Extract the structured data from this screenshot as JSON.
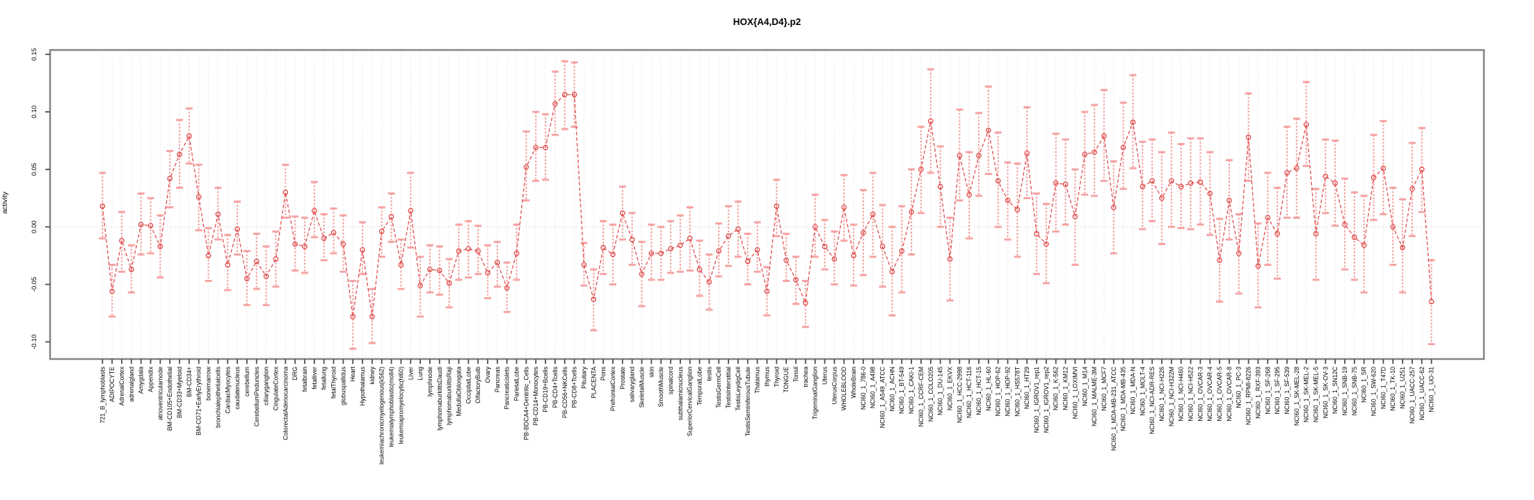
{
  "page": {
    "background": "#ffffff"
  },
  "chart_data": {
    "type": "line",
    "title": "HOX{A4,D4}.p2",
    "ylabel": "activity",
    "xlabel": "",
    "legend": "none",
    "marker": "open-circle",
    "error_bars": true,
    "ylim": [
      -0.115,
      0.155
    ],
    "yticks": [
      -0.1,
      -0.05,
      0.0,
      0.05,
      0.1,
      0.15
    ],
    "grid": {
      "vertical_per_category": true,
      "zero_line_dotted": true,
      "horizontal": false
    },
    "colors": {
      "line": "#e25757",
      "marker": "#df4848",
      "error_bar": "#f49a9a",
      "grid": "#dadada",
      "zero_line": "#c8c8c8",
      "border": "#828282",
      "tick": "#4d4d4d",
      "text": "#000000"
    },
    "categories": [
      "721_B_lymphoblasts",
      "ADIPOCYTE",
      "AdrenalCortex",
      "adrenalgland",
      "Amygdala",
      "Appendix",
      "atrioventricularnode",
      "BM-CD105+Endothelial",
      "BM-CD33+Myeloid",
      "BM-CD34+",
      "BM-CD71+EarlyErythroid",
      "bonemarrow",
      "bronchialepithelialcells",
      "CardiacMyocytes",
      "caudatenucleus",
      "cerebellum",
      "CerebellumPeduncles",
      "ciliaryganglion",
      "CingulateCortex",
      "ColorectalAdenocarcinoma",
      "DRG",
      "fetalbrain",
      "fetalliver",
      "fetallung",
      "fetalThyroid",
      "globuspallidus",
      "Heart",
      "Hypothalamus",
      "kidney",
      "leukemiachronicmyelogenous(k562)",
      "leukemialymphoblastic(molt4)",
      "leukemiapromyelocytic(hl60)",
      "Liver",
      "Lung",
      "lymphnode",
      "lymphomaburkittsDaudi",
      "lymphomaburkittsRaji",
      "MedullaOblongata",
      "OccipitalLobe",
      "OlfactoryBulb",
      "Ovary",
      "Pancreas",
      "Pancreaticislets",
      "ParietalLobe",
      "PB-BDCA4+Dentritic_Cells",
      "PB-CD14+Monocytes",
      "PB-CD19+Bcells",
      "PB-CD4+Tcells",
      "PB-CD56+NKCells",
      "PB-CD8+Tcells",
      "Pituitary",
      "PLACENTA",
      "Pons",
      "PrefrontalCortex",
      "Prostate",
      "salivarygland",
      "SkeletalMuscle",
      "skin",
      "SmoothMuscle",
      "spinalcord",
      "subthalamicnucleus",
      "SuperiorCervicalGanglion",
      "TemporalLobe",
      "testis",
      "TestisGermCell",
      "TestisInterstitial",
      "TestisLeydigCell",
      "TestisSeminiferousTubule",
      "Thalamus",
      "thymus",
      "Thyroid",
      "TONGUE",
      "Tonsil",
      "trachea",
      "TrigeminalGanglion",
      "Uterus",
      "UterusCorpus",
      "WHOLEBLOOD",
      "WholeBrain",
      "NCI60_1_786-0",
      "NCI60_1_A498",
      "NCI60_1_A549_ATCC",
      "NCI60_1_ACHN",
      "NCI60_1_BT-549",
      "NCI60_1_CAKI-1",
      "NCI60_1_CCRF-CEM",
      "NCI60_1_COLO205",
      "NCI60_1_DU-145",
      "NCI60_1_EKVX",
      "NCI60_1_HCC-2998",
      "NCI60_1_HCT-116",
      "NCI60_1_HCT-15",
      "NCI60_1_HL-60",
      "NCI60_1_HOP-62",
      "NCI60_1_HOP-92",
      "NCI60_1_HS578T",
      "NCI60_1_HT29",
      "NCI60_1_IGROV1_rep1",
      "NCI60_1_IGROV1_rep2",
      "NCI60_1_K-562",
      "NCI60_1_KM12",
      "NCI60_1_LOXIMVI",
      "NCI60_1_M14",
      "NCI60_1_MALME-3M",
      "NCI60_1_MCF7",
      "NCI60_1_MDA-MB-231_ATCC",
      "NCI60_1_MDA-MB-435",
      "NCI60_1_MDA-N",
      "NCI60_1_MOLT-4",
      "NCI60_1_NCI-ADR-RES",
      "NCI60_1_NCI-H226",
      "NCI60_1_NCI-H322M",
      "NCI60_1_NCI-H460",
      "NCI60_1_NCI-H522",
      "NCI60_1_OVCAR-3",
      "NCI60_1_OVCAR-4",
      "NCI60_1_OVCAR-5",
      "NCI60_1_OVCAR-8",
      "NCI60_1_PC-3",
      "NCI60_1_RPMI-8226",
      "NCI60_1_RXF-393",
      "NCI60_1_SF-268",
      "NCI60_1_SF-295",
      "NCI60_1_SF-539",
      "NCI60_1_SK-MEL-28",
      "NCI60_1_SK-MEL-2",
      "NCI60_1_SK-MEL-5",
      "NCI60_1_SK-OV-3",
      "NCI60_1_SN12C",
      "NCI60_1_SNB-19",
      "NCI60_1_SNB-75",
      "NCI60_1_SR",
      "NCI60_1_SW-620",
      "NCI60_1_T47D",
      "NCI60_1_TK-10",
      "NCI60_1_U251",
      "NCI60_1_UACC-257",
      "NCI60_1_UACC-62",
      "NCI60_1_UO-31"
    ],
    "series": [
      {
        "name": "activity",
        "values": [
          0.018,
          -0.056,
          -0.012,
          -0.037,
          0.002,
          0.001,
          -0.017,
          0.042,
          0.063,
          0.079,
          0.026,
          -0.025,
          0.011,
          -0.033,
          -0.002,
          -0.045,
          -0.03,
          -0.043,
          -0.028,
          0.03,
          -0.015,
          -0.017,
          0.014,
          -0.01,
          -0.005,
          -0.015,
          -0.078,
          -0.02,
          -0.078,
          -0.004,
          0.009,
          -0.033,
          0.014,
          -0.051,
          -0.037,
          -0.038,
          -0.049,
          -0.021,
          -0.019,
          -0.021,
          -0.04,
          -0.031,
          -0.053,
          -0.023,
          0.052,
          0.069,
          0.069,
          0.107,
          0.115,
          0.115,
          -0.033,
          -0.063,
          -0.018,
          -0.024,
          0.012,
          -0.011,
          -0.041,
          -0.023,
          -0.023,
          -0.019,
          -0.016,
          -0.01,
          -0.037,
          -0.048,
          -0.021,
          -0.008,
          -0.002,
          -0.03,
          -0.02,
          -0.056,
          0.018,
          -0.029,
          -0.046,
          -0.066,
          0.0,
          -0.017,
          -0.028,
          0.017,
          -0.025,
          -0.005,
          0.011,
          -0.017,
          -0.039,
          -0.021,
          0.013,
          0.05,
          0.092,
          0.035,
          -0.028,
          0.062,
          0.028,
          0.062,
          0.084,
          0.04,
          0.023,
          0.015,
          0.064,
          -0.006,
          -0.015,
          0.038,
          0.037,
          0.009,
          0.063,
          0.065,
          0.079,
          0.017,
          0.069,
          0.091,
          0.035,
          0.04,
          0.025,
          0.04,
          0.035,
          0.038,
          0.039,
          0.029,
          -0.029,
          0.023,
          -0.023,
          0.078,
          -0.034,
          0.008,
          -0.006,
          0.047,
          0.051,
          0.089,
          -0.006,
          0.044,
          0.038,
          0.002,
          -0.009,
          -0.016,
          0.043,
          0.051,
          0.0,
          -0.018,
          0.033,
          0.05,
          -0.065
        ],
        "lower": [
          -0.01,
          -0.078,
          -0.039,
          -0.057,
          -0.024,
          -0.023,
          -0.044,
          0.017,
          0.034,
          0.055,
          -0.003,
          -0.047,
          -0.011,
          -0.055,
          -0.024,
          -0.068,
          -0.054,
          -0.068,
          -0.052,
          0.008,
          -0.038,
          -0.04,
          -0.009,
          -0.029,
          -0.023,
          -0.039,
          -0.106,
          -0.041,
          -0.101,
          -0.026,
          -0.013,
          -0.054,
          -0.018,
          -0.078,
          -0.057,
          -0.059,
          -0.07,
          -0.046,
          -0.044,
          -0.041,
          -0.062,
          -0.052,
          -0.074,
          -0.046,
          0.023,
          0.04,
          0.041,
          0.08,
          0.085,
          0.087,
          -0.051,
          -0.09,
          -0.041,
          -0.05,
          -0.011,
          -0.033,
          -0.069,
          -0.046,
          -0.046,
          -0.04,
          -0.039,
          -0.038,
          -0.06,
          -0.072,
          -0.043,
          -0.034,
          -0.026,
          -0.05,
          -0.039,
          -0.077,
          -0.008,
          -0.047,
          -0.067,
          -0.087,
          -0.026,
          -0.037,
          -0.05,
          -0.012,
          -0.051,
          -0.042,
          -0.026,
          -0.052,
          -0.077,
          -0.057,
          -0.024,
          0.012,
          0.047,
          0.0,
          -0.064,
          0.023,
          -0.01,
          0.027,
          0.046,
          0.0,
          -0.011,
          -0.026,
          0.025,
          -0.041,
          -0.049,
          -0.004,
          0.002,
          -0.033,
          0.028,
          0.027,
          0.04,
          -0.023,
          0.033,
          0.051,
          -0.002,
          0.005,
          -0.015,
          0.0,
          -0.001,
          -0.002,
          0.002,
          -0.007,
          -0.065,
          -0.011,
          -0.058,
          0.04,
          -0.07,
          -0.033,
          -0.045,
          0.008,
          0.008,
          0.053,
          -0.046,
          0.012,
          0.001,
          -0.037,
          -0.046,
          -0.057,
          0.006,
          0.011,
          -0.033,
          -0.057,
          -0.008,
          0.013,
          -0.102
        ],
        "upper": [
          0.047,
          -0.033,
          0.013,
          -0.016,
          0.029,
          0.025,
          0.01,
          0.066,
          0.093,
          0.103,
          0.054,
          -0.001,
          0.034,
          -0.007,
          0.022,
          -0.021,
          -0.006,
          -0.017,
          -0.004,
          0.054,
          0.009,
          0.008,
          0.039,
          0.011,
          0.016,
          0.01,
          -0.047,
          0.004,
          -0.054,
          0.017,
          0.029,
          -0.011,
          0.047,
          -0.026,
          -0.016,
          -0.017,
          -0.028,
          0.002,
          0.005,
          0.001,
          -0.016,
          -0.013,
          -0.031,
          0.002,
          0.083,
          0.1,
          0.098,
          0.135,
          0.144,
          0.143,
          -0.014,
          -0.037,
          0.005,
          0.002,
          0.035,
          0.012,
          -0.013,
          0.002,
          0.0,
          0.005,
          0.01,
          0.017,
          -0.012,
          -0.024,
          0.003,
          0.018,
          0.022,
          -0.006,
          0.004,
          -0.035,
          0.041,
          -0.006,
          -0.026,
          -0.047,
          0.028,
          0.006,
          -0.004,
          0.045,
          0.002,
          0.032,
          0.047,
          0.019,
          0.0,
          0.018,
          0.05,
          0.087,
          0.137,
          0.07,
          0.008,
          0.102,
          0.065,
          0.099,
          0.122,
          0.082,
          0.056,
          0.055,
          0.104,
          0.029,
          0.02,
          0.081,
          0.076,
          0.05,
          0.1,
          0.106,
          0.119,
          0.057,
          0.108,
          0.132,
          0.074,
          0.076,
          0.065,
          0.082,
          0.072,
          0.077,
          0.077,
          0.065,
          0.007,
          0.058,
          0.011,
          0.116,
          0.003,
          0.047,
          0.034,
          0.087,
          0.094,
          0.126,
          0.033,
          0.076,
          0.075,
          0.042,
          0.03,
          0.027,
          0.08,
          0.092,
          0.034,
          0.024,
          0.073,
          0.086,
          -0.029
        ]
      }
    ]
  }
}
